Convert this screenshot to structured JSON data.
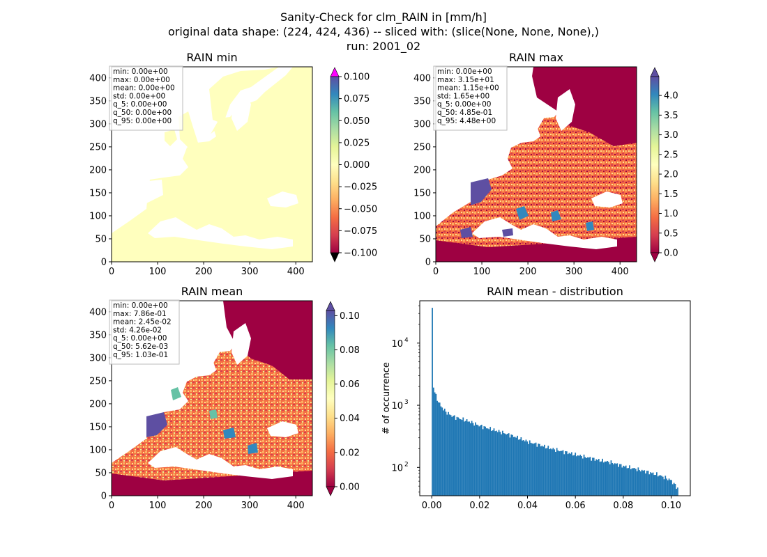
{
  "suptitle": {
    "line1": "Sanity-Check for clm_RAIN in [mm/h]",
    "line2": "original data shape: (224, 424, 436) -- sliced with: (slice(None, None, None),)",
    "line3": "run: 2001_02"
  },
  "colors": {
    "land_min": "#ffffbe",
    "sea": "#ffffff",
    "hist_bar": "#1f77b4",
    "over_color_min": "#ff00ff",
    "cmap": [
      "#9e0142",
      "#d53e4f",
      "#f46d43",
      "#fdae61",
      "#fee08b",
      "#ffffbf",
      "#e6f598",
      "#abdda4",
      "#66c2a5",
      "#3288bd",
      "#5e4fa2"
    ]
  },
  "chart_data": [
    {
      "type": "heatmap",
      "title": "RAIN min",
      "xlim": [
        0,
        436
      ],
      "ylim": [
        0,
        424
      ],
      "xticks": [
        "0",
        "100",
        "200",
        "300",
        "400"
      ],
      "yticks": [
        "0",
        "50",
        "100",
        "150",
        "200",
        "250",
        "300",
        "350",
        "400"
      ],
      "colorbar": {
        "range": [
          -0.1,
          0.1
        ],
        "ticks": [
          "0.100",
          "0.075",
          "0.050",
          "0.025",
          "0.000",
          "−0.025",
          "−0.050",
          "−0.075",
          "−0.100"
        ]
      },
      "stats": [
        "min: 0.00e+00",
        "max: 0.00e+00",
        "mean: 0.00e+00",
        "std: 0.00e+00",
        "q_5: 0.00e+00",
        "q_50: 0.00e+00",
        "q_95: 0.00e+00"
      ]
    },
    {
      "type": "heatmap",
      "title": "RAIN max",
      "xlim": [
        0,
        436
      ],
      "ylim": [
        0,
        424
      ],
      "xticks": [
        "0",
        "100",
        "200",
        "300",
        "400"
      ],
      "yticks": [
        "0",
        "50",
        "100",
        "150",
        "200",
        "250",
        "300",
        "350",
        "400"
      ],
      "colorbar": {
        "range": [
          0,
          4.48
        ],
        "ticks": [
          "4.0",
          "3.5",
          "3.0",
          "2.5",
          "2.0",
          "1.5",
          "1.0",
          "0.5",
          "0.0"
        ]
      },
      "stats": [
        "min: 0.00e+00",
        "max: 3.15e+01",
        "mean: 1.15e+00",
        "std: 1.65e+00",
        "q_5: 0.00e+00",
        "q_50: 4.85e-01",
        "q_95: 4.48e+00"
      ]
    },
    {
      "type": "heatmap",
      "title": "RAIN mean",
      "xlim": [
        0,
        436
      ],
      "ylim": [
        0,
        424
      ],
      "xticks": [
        "0",
        "100",
        "200",
        "300",
        "400"
      ],
      "yticks": [
        "0",
        "50",
        "100",
        "150",
        "200",
        "250",
        "300",
        "350",
        "400"
      ],
      "colorbar": {
        "range": [
          0,
          0.103
        ],
        "ticks": [
          "0.10",
          "0.08",
          "0.06",
          "0.04",
          "0.02",
          "0.00"
        ]
      },
      "stats": [
        "min: 0.00e+00",
        "max: 7.86e-01",
        "mean: 2.45e-02",
        "std: 4.26e-02",
        "q_5: 0.00e+00",
        "q_50: 5.62e-03",
        "q_95: 1.03e-01"
      ]
    },
    {
      "type": "bar",
      "title": "RAIN mean - distribution",
      "ylabel": "# of occurrence",
      "xlim": [
        -0.005,
        0.108
      ],
      "ylim": [
        35,
        48000
      ],
      "yscale": "log",
      "xticks": [
        "0.00",
        "0.02",
        "0.04",
        "0.06",
        "0.08",
        "0.10"
      ],
      "yticks": [
        {
          "value": 100,
          "base": "10",
          "exp": "2"
        },
        {
          "value": 1000,
          "base": "10",
          "exp": "3"
        },
        {
          "value": 10000,
          "base": "10",
          "exp": "4"
        }
      ],
      "bin_range": [
        0,
        0.103
      ],
      "counts_sampled": [
        {
          "x": 0.0,
          "y": 37000
        },
        {
          "x": 0.0004,
          "y": 2300
        },
        {
          "x": 0.0008,
          "y": 1900
        },
        {
          "x": 0.0015,
          "y": 1500
        },
        {
          "x": 0.0025,
          "y": 1200
        },
        {
          "x": 0.004,
          "y": 950
        },
        {
          "x": 0.006,
          "y": 780
        },
        {
          "x": 0.008,
          "y": 690
        },
        {
          "x": 0.01,
          "y": 640
        },
        {
          "x": 0.015,
          "y": 560
        },
        {
          "x": 0.02,
          "y": 470
        },
        {
          "x": 0.025,
          "y": 410
        },
        {
          "x": 0.03,
          "y": 360
        },
        {
          "x": 0.035,
          "y": 310
        },
        {
          "x": 0.04,
          "y": 260
        },
        {
          "x": 0.045,
          "y": 230
        },
        {
          "x": 0.05,
          "y": 200
        },
        {
          "x": 0.055,
          "y": 180
        },
        {
          "x": 0.06,
          "y": 160
        },
        {
          "x": 0.065,
          "y": 145
        },
        {
          "x": 0.07,
          "y": 130
        },
        {
          "x": 0.075,
          "y": 120
        },
        {
          "x": 0.08,
          "y": 105
        },
        {
          "x": 0.085,
          "y": 95
        },
        {
          "x": 0.09,
          "y": 85
        },
        {
          "x": 0.095,
          "y": 75
        },
        {
          "x": 0.1,
          "y": 62
        },
        {
          "x": 0.103,
          "y": 45
        }
      ]
    }
  ]
}
